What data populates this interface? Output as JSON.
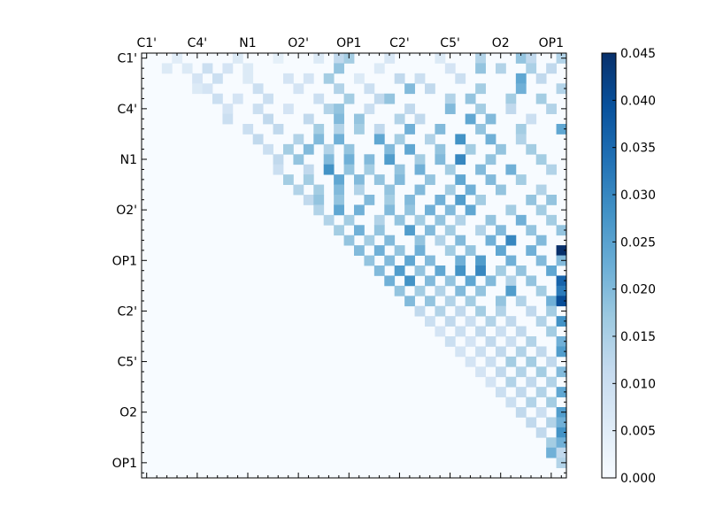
{
  "chart_data": {
    "type": "heatmap",
    "title": "",
    "xlabel": "",
    "ylabel": "",
    "size": 42,
    "triangle": "upper",
    "row_tick_labels": [
      "C1'",
      "C4'",
      "N1",
      "O2'",
      "OP1",
      "C2'",
      "C5'",
      "O2",
      "OP1"
    ],
    "col_tick_labels": [
      "C1'",
      "C4'",
      "N1",
      "O2'",
      "OP1",
      "C2'",
      "C5'",
      "O2",
      "OP1"
    ],
    "tick_step": 5,
    "colorscale": "Blues",
    "color_stops": [
      "#f7fbff",
      "#deebf7",
      "#c6dbef",
      "#9ecae1",
      "#6baed6",
      "#4292c6",
      "#2171b5",
      "#08519c",
      "#08306b"
    ],
    "colorbar": {
      "min": 0.0,
      "max": 0.045,
      "tick_labels": [
        "0.000",
        "0.005",
        "0.010",
        "0.015",
        "0.020",
        "0.025",
        "0.030",
        "0.035",
        "0.040",
        "0.045"
      ]
    },
    "cells": [
      [
        0,
        3,
        0.005
      ],
      [
        0,
        9,
        0.006
      ],
      [
        0,
        13,
        0.004
      ],
      [
        0,
        17,
        0.006
      ],
      [
        0,
        19,
        0.012
      ],
      [
        0,
        20,
        0.016
      ],
      [
        0,
        24,
        0.007
      ],
      [
        0,
        29,
        0.006
      ],
      [
        0,
        33,
        0.014
      ],
      [
        0,
        37,
        0.018
      ],
      [
        0,
        38,
        0.012
      ],
      [
        0,
        41,
        0.014
      ],
      [
        1,
        2,
        0.006
      ],
      [
        1,
        4,
        0.006
      ],
      [
        1,
        6,
        0.01
      ],
      [
        1,
        8,
        0.008
      ],
      [
        1,
        10,
        0.006
      ],
      [
        1,
        19,
        0.018
      ],
      [
        1,
        23,
        0.006
      ],
      [
        1,
        30,
        0.008
      ],
      [
        1,
        33,
        0.018
      ],
      [
        1,
        35,
        0.014
      ],
      [
        1,
        38,
        0.015
      ],
      [
        1,
        40,
        0.012
      ],
      [
        2,
        5,
        0.008
      ],
      [
        2,
        7,
        0.01
      ],
      [
        2,
        10,
        0.006
      ],
      [
        2,
        14,
        0.008
      ],
      [
        2,
        16,
        0.008
      ],
      [
        2,
        18,
        0.016
      ],
      [
        2,
        21,
        0.006
      ],
      [
        2,
        25,
        0.012
      ],
      [
        2,
        27,
        0.01
      ],
      [
        2,
        31,
        0.01
      ],
      [
        2,
        37,
        0.024
      ],
      [
        2,
        39,
        0.012
      ],
      [
        3,
        5,
        0.006
      ],
      [
        3,
        6,
        0.008
      ],
      [
        3,
        11,
        0.01
      ],
      [
        3,
        15,
        0.008
      ],
      [
        3,
        19,
        0.014
      ],
      [
        3,
        22,
        0.01
      ],
      [
        3,
        26,
        0.02
      ],
      [
        3,
        28,
        0.012
      ],
      [
        3,
        33,
        0.016
      ],
      [
        3,
        37,
        0.022
      ],
      [
        3,
        41,
        0.014
      ],
      [
        4,
        7,
        0.01
      ],
      [
        4,
        9,
        0.008
      ],
      [
        4,
        12,
        0.01
      ],
      [
        4,
        17,
        0.01
      ],
      [
        4,
        20,
        0.016
      ],
      [
        4,
        23,
        0.012
      ],
      [
        4,
        24,
        0.018
      ],
      [
        4,
        30,
        0.014
      ],
      [
        4,
        32,
        0.018
      ],
      [
        4,
        36,
        0.016
      ],
      [
        4,
        39,
        0.016
      ],
      [
        5,
        8,
        0.008
      ],
      [
        5,
        11,
        0.01
      ],
      [
        5,
        14,
        0.008
      ],
      [
        5,
        18,
        0.014
      ],
      [
        5,
        19,
        0.018
      ],
      [
        5,
        22,
        0.01
      ],
      [
        5,
        26,
        0.012
      ],
      [
        5,
        30,
        0.02
      ],
      [
        5,
        33,
        0.016
      ],
      [
        5,
        36,
        0.012
      ],
      [
        5,
        40,
        0.014
      ],
      [
        6,
        8,
        0.01
      ],
      [
        6,
        12,
        0.012
      ],
      [
        6,
        16,
        0.012
      ],
      [
        6,
        19,
        0.02
      ],
      [
        6,
        21,
        0.018
      ],
      [
        6,
        25,
        0.014
      ],
      [
        6,
        27,
        0.012
      ],
      [
        6,
        32,
        0.024
      ],
      [
        6,
        34,
        0.02
      ],
      [
        6,
        38,
        0.01
      ],
      [
        7,
        10,
        0.01
      ],
      [
        7,
        13,
        0.012
      ],
      [
        7,
        17,
        0.016
      ],
      [
        7,
        19,
        0.014
      ],
      [
        7,
        21,
        0.016
      ],
      [
        7,
        23,
        0.012
      ],
      [
        7,
        26,
        0.022
      ],
      [
        7,
        29,
        0.02
      ],
      [
        7,
        33,
        0.018
      ],
      [
        7,
        37,
        0.016
      ],
      [
        7,
        41,
        0.024
      ],
      [
        8,
        11,
        0.012
      ],
      [
        8,
        15,
        0.014
      ],
      [
        8,
        17,
        0.02
      ],
      [
        8,
        19,
        0.022
      ],
      [
        8,
        23,
        0.024
      ],
      [
        8,
        25,
        0.016
      ],
      [
        8,
        28,
        0.014
      ],
      [
        8,
        31,
        0.028
      ],
      [
        8,
        34,
        0.022
      ],
      [
        8,
        37,
        0.014
      ],
      [
        9,
        12,
        0.01
      ],
      [
        9,
        14,
        0.016
      ],
      [
        9,
        16,
        0.02
      ],
      [
        9,
        18,
        0.014
      ],
      [
        9,
        20,
        0.018
      ],
      [
        9,
        24,
        0.02
      ],
      [
        9,
        26,
        0.024
      ],
      [
        9,
        29,
        0.018
      ],
      [
        9,
        32,
        0.016
      ],
      [
        9,
        35,
        0.018
      ],
      [
        9,
        38,
        0.016
      ],
      [
        10,
        13,
        0.012
      ],
      [
        10,
        15,
        0.018
      ],
      [
        10,
        18,
        0.02
      ],
      [
        10,
        20,
        0.022
      ],
      [
        10,
        22,
        0.02
      ],
      [
        10,
        24,
        0.026
      ],
      [
        10,
        27,
        0.016
      ],
      [
        10,
        29,
        0.02
      ],
      [
        10,
        31,
        0.03
      ],
      [
        10,
        34,
        0.018
      ],
      [
        10,
        39,
        0.016
      ],
      [
        11,
        13,
        0.01
      ],
      [
        11,
        16,
        0.012
      ],
      [
        11,
        18,
        0.028
      ],
      [
        11,
        20,
        0.018
      ],
      [
        11,
        22,
        0.016
      ],
      [
        11,
        25,
        0.018
      ],
      [
        11,
        27,
        0.022
      ],
      [
        11,
        30,
        0.016
      ],
      [
        11,
        33,
        0.02
      ],
      [
        11,
        36,
        0.022
      ],
      [
        11,
        40,
        0.014
      ],
      [
        12,
        14,
        0.016
      ],
      [
        12,
        16,
        0.016
      ],
      [
        12,
        19,
        0.024
      ],
      [
        12,
        21,
        0.02
      ],
      [
        12,
        23,
        0.018
      ],
      [
        12,
        25,
        0.02
      ],
      [
        12,
        28,
        0.018
      ],
      [
        12,
        31,
        0.024
      ],
      [
        12,
        34,
        0.02
      ],
      [
        12,
        37,
        0.016
      ],
      [
        13,
        15,
        0.014
      ],
      [
        13,
        17,
        0.016
      ],
      [
        13,
        19,
        0.02
      ],
      [
        13,
        21,
        0.014
      ],
      [
        13,
        24,
        0.018
      ],
      [
        13,
        27,
        0.02
      ],
      [
        13,
        30,
        0.016
      ],
      [
        13,
        32,
        0.022
      ],
      [
        13,
        35,
        0.018
      ],
      [
        13,
        39,
        0.014
      ],
      [
        14,
        16,
        0.012
      ],
      [
        14,
        17,
        0.018
      ],
      [
        14,
        19,
        0.018
      ],
      [
        14,
        22,
        0.02
      ],
      [
        14,
        24,
        0.016
      ],
      [
        14,
        26,
        0.02
      ],
      [
        14,
        29,
        0.022
      ],
      [
        14,
        31,
        0.026
      ],
      [
        14,
        33,
        0.016
      ],
      [
        14,
        38,
        0.018
      ],
      [
        14,
        40,
        0.018
      ],
      [
        15,
        17,
        0.014
      ],
      [
        15,
        19,
        0.024
      ],
      [
        15,
        21,
        0.022
      ],
      [
        15,
        24,
        0.02
      ],
      [
        15,
        26,
        0.018
      ],
      [
        15,
        28,
        0.022
      ],
      [
        15,
        30,
        0.02
      ],
      [
        15,
        32,
        0.024
      ],
      [
        15,
        36,
        0.016
      ],
      [
        15,
        39,
        0.016
      ],
      [
        16,
        18,
        0.014
      ],
      [
        16,
        20,
        0.016
      ],
      [
        16,
        23,
        0.014
      ],
      [
        16,
        25,
        0.018
      ],
      [
        16,
        27,
        0.016
      ],
      [
        16,
        29,
        0.018
      ],
      [
        16,
        31,
        0.014
      ],
      [
        16,
        34,
        0.018
      ],
      [
        16,
        37,
        0.022
      ],
      [
        16,
        40,
        0.016
      ],
      [
        17,
        19,
        0.016
      ],
      [
        17,
        21,
        0.022
      ],
      [
        17,
        23,
        0.018
      ],
      [
        17,
        26,
        0.026
      ],
      [
        17,
        28,
        0.02
      ],
      [
        17,
        30,
        0.016
      ],
      [
        17,
        33,
        0.014
      ],
      [
        17,
        35,
        0.02
      ],
      [
        17,
        38,
        0.018
      ],
      [
        17,
        41,
        0.018
      ],
      [
        18,
        20,
        0.018
      ],
      [
        18,
        22,
        0.016
      ],
      [
        18,
        24,
        0.02
      ],
      [
        18,
        27,
        0.018
      ],
      [
        18,
        29,
        0.014
      ],
      [
        18,
        31,
        0.02
      ],
      [
        18,
        34,
        0.022
      ],
      [
        18,
        36,
        0.03
      ],
      [
        18,
        39,
        0.02
      ],
      [
        19,
        21,
        0.02
      ],
      [
        19,
        23,
        0.022
      ],
      [
        19,
        25,
        0.018
      ],
      [
        19,
        27,
        0.022
      ],
      [
        19,
        30,
        0.016
      ],
      [
        19,
        32,
        0.018
      ],
      [
        19,
        35,
        0.024
      ],
      [
        19,
        38,
        0.022
      ],
      [
        19,
        41,
        0.045
      ],
      [
        20,
        22,
        0.018
      ],
      [
        20,
        24,
        0.02
      ],
      [
        20,
        26,
        0.024
      ],
      [
        20,
        28,
        0.02
      ],
      [
        20,
        31,
        0.022
      ],
      [
        20,
        33,
        0.026
      ],
      [
        20,
        36,
        0.022
      ],
      [
        20,
        39,
        0.02
      ],
      [
        20,
        41,
        0.02
      ],
      [
        21,
        23,
        0.02
      ],
      [
        21,
        25,
        0.026
      ],
      [
        21,
        27,
        0.018
      ],
      [
        21,
        29,
        0.024
      ],
      [
        21,
        31,
        0.028
      ],
      [
        21,
        33,
        0.03
      ],
      [
        21,
        35,
        0.016
      ],
      [
        21,
        37,
        0.018
      ],
      [
        21,
        40,
        0.024
      ],
      [
        22,
        24,
        0.022
      ],
      [
        22,
        26,
        0.028
      ],
      [
        22,
        28,
        0.02
      ],
      [
        22,
        30,
        0.018
      ],
      [
        22,
        32,
        0.024
      ],
      [
        22,
        34,
        0.02
      ],
      [
        22,
        36,
        0.014
      ],
      [
        22,
        38,
        0.018
      ],
      [
        22,
        41,
        0.036
      ],
      [
        23,
        25,
        0.018
      ],
      [
        23,
        27,
        0.016
      ],
      [
        23,
        29,
        0.014
      ],
      [
        23,
        31,
        0.02
      ],
      [
        23,
        33,
        0.018
      ],
      [
        23,
        36,
        0.026
      ],
      [
        23,
        39,
        0.016
      ],
      [
        23,
        41,
        0.032
      ],
      [
        24,
        26,
        0.02
      ],
      [
        24,
        28,
        0.018
      ],
      [
        24,
        30,
        0.014
      ],
      [
        24,
        32,
        0.016
      ],
      [
        24,
        35,
        0.018
      ],
      [
        24,
        37,
        0.014
      ],
      [
        24,
        40,
        0.022
      ],
      [
        24,
        41,
        0.04
      ],
      [
        25,
        27,
        0.012
      ],
      [
        25,
        29,
        0.014
      ],
      [
        25,
        31,
        0.012
      ],
      [
        25,
        33,
        0.016
      ],
      [
        25,
        35,
        0.014
      ],
      [
        25,
        38,
        0.012
      ],
      [
        25,
        40,
        0.016
      ],
      [
        26,
        28,
        0.01
      ],
      [
        26,
        30,
        0.012
      ],
      [
        26,
        32,
        0.01
      ],
      [
        26,
        34,
        0.014
      ],
      [
        26,
        36,
        0.012
      ],
      [
        26,
        39,
        0.014
      ],
      [
        26,
        41,
        0.028
      ],
      [
        27,
        29,
        0.008
      ],
      [
        27,
        31,
        0.01
      ],
      [
        27,
        33,
        0.012
      ],
      [
        27,
        35,
        0.01
      ],
      [
        27,
        37,
        0.012
      ],
      [
        27,
        40,
        0.016
      ],
      [
        28,
        30,
        0.01
      ],
      [
        28,
        32,
        0.008
      ],
      [
        28,
        34,
        0.012
      ],
      [
        28,
        36,
        0.01
      ],
      [
        28,
        38,
        0.014
      ],
      [
        28,
        41,
        0.022
      ],
      [
        29,
        31,
        0.008
      ],
      [
        29,
        33,
        0.01
      ],
      [
        29,
        35,
        0.012
      ],
      [
        29,
        37,
        0.014
      ],
      [
        29,
        39,
        0.012
      ],
      [
        29,
        41,
        0.026
      ],
      [
        30,
        32,
        0.008
      ],
      [
        30,
        34,
        0.01
      ],
      [
        30,
        36,
        0.016
      ],
      [
        30,
        38,
        0.016
      ],
      [
        30,
        40,
        0.012
      ],
      [
        31,
        33,
        0.008
      ],
      [
        31,
        35,
        0.012
      ],
      [
        31,
        37,
        0.014
      ],
      [
        31,
        39,
        0.016
      ],
      [
        31,
        41,
        0.02
      ],
      [
        32,
        34,
        0.008
      ],
      [
        32,
        36,
        0.014
      ],
      [
        32,
        38,
        0.012
      ],
      [
        32,
        40,
        0.014
      ],
      [
        33,
        35,
        0.01
      ],
      [
        33,
        37,
        0.012
      ],
      [
        33,
        39,
        0.014
      ],
      [
        33,
        41,
        0.024
      ],
      [
        34,
        36,
        0.01
      ],
      [
        34,
        38,
        0.014
      ],
      [
        34,
        40,
        0.016
      ],
      [
        35,
        37,
        0.012
      ],
      [
        35,
        39,
        0.01
      ],
      [
        35,
        41,
        0.026
      ],
      [
        36,
        38,
        0.012
      ],
      [
        36,
        40,
        0.014
      ],
      [
        36,
        41,
        0.022
      ],
      [
        37,
        39,
        0.012
      ],
      [
        37,
        41,
        0.028
      ],
      [
        38,
        40,
        0.016
      ],
      [
        38,
        41,
        0.022
      ],
      [
        39,
        40,
        0.022
      ],
      [
        39,
        41,
        0.012
      ],
      [
        40,
        41,
        0.014
      ]
    ]
  }
}
